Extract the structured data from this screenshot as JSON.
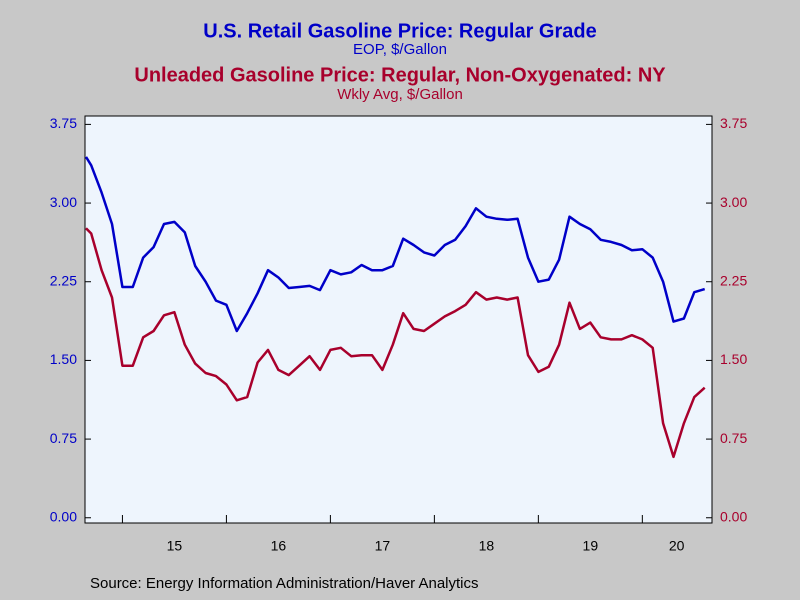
{
  "chart_data": {
    "type": "line",
    "source": "Source:  Energy Information Administration/Haver Analytics",
    "x": [
      14.65,
      14.7,
      14.8,
      14.9,
      15.0,
      15.1,
      15.2,
      15.3,
      15.4,
      15.5,
      15.6,
      15.7,
      15.8,
      15.9,
      16.0,
      16.1,
      16.2,
      16.3,
      16.4,
      16.5,
      16.6,
      16.7,
      16.8,
      16.9,
      17.0,
      17.1,
      17.2,
      17.3,
      17.4,
      17.5,
      17.6,
      17.7,
      17.8,
      17.9,
      18.0,
      18.1,
      18.2,
      18.3,
      18.4,
      18.5,
      18.6,
      18.7,
      18.8,
      18.9,
      19.0,
      19.1,
      19.2,
      19.3,
      19.4,
      19.5,
      19.6,
      19.7,
      19.8,
      19.9,
      20.0,
      20.1,
      20.2,
      20.3,
      20.4,
      20.5,
      20.6
    ],
    "series": [
      {
        "name": "U.S. Retail Gasoline Price: Regular Grade",
        "unit": "EOP, $/Gallon",
        "color": "#0000c8",
        "axis": "y",
        "values": [
          3.44,
          3.36,
          3.1,
          2.8,
          2.2,
          2.2,
          2.48,
          2.58,
          2.8,
          2.82,
          2.72,
          2.4,
          2.25,
          2.07,
          2.03,
          1.78,
          1.95,
          2.14,
          2.36,
          2.29,
          2.19,
          2.2,
          2.21,
          2.17,
          2.36,
          2.32,
          2.34,
          2.41,
          2.36,
          2.36,
          2.4,
          2.66,
          2.6,
          2.53,
          2.5,
          2.6,
          2.65,
          2.78,
          2.95,
          2.87,
          2.85,
          2.84,
          2.85,
          2.48,
          2.25,
          2.27,
          2.46,
          2.87,
          2.8,
          2.75,
          2.65,
          2.63,
          2.6,
          2.55,
          2.56,
          2.48,
          2.25,
          1.87,
          1.9,
          2.15,
          2.18
        ]
      },
      {
        "name": "Unleaded Gasoline Price: Regular, Non-Oxygenated: NY",
        "unit": "Wkly Avg, $/Gallon",
        "color": "#a8002c",
        "axis": "y2",
        "values": [
          2.76,
          2.71,
          2.36,
          2.1,
          1.45,
          1.45,
          1.72,
          1.78,
          1.93,
          1.96,
          1.65,
          1.47,
          1.38,
          1.35,
          1.27,
          1.12,
          1.15,
          1.48,
          1.6,
          1.41,
          1.36,
          1.45,
          1.54,
          1.41,
          1.6,
          1.62,
          1.54,
          1.55,
          1.55,
          1.41,
          1.65,
          1.95,
          1.8,
          1.78,
          1.85,
          1.92,
          1.97,
          2.03,
          2.15,
          2.08,
          2.1,
          2.08,
          2.1,
          1.55,
          1.39,
          1.44,
          1.65,
          2.05,
          1.8,
          1.86,
          1.72,
          1.7,
          1.7,
          1.74,
          1.7,
          1.62,
          0.9,
          0.58,
          0.9,
          1.15,
          1.24
        ]
      }
    ],
    "xlim": [
      14.64,
      20.67
    ],
    "xticks": [
      {
        "value": 15.5,
        "label": "15"
      },
      {
        "value": 16.5,
        "label": "16"
      },
      {
        "value": 17.5,
        "label": "17"
      },
      {
        "value": 18.5,
        "label": "18"
      },
      {
        "value": 19.5,
        "label": "19"
      },
      {
        "value": 20.33,
        "label": "20"
      }
    ],
    "xminor": [
      15,
      16,
      17,
      18,
      19,
      20
    ],
    "ylim": [
      -0.05,
      3.83
    ],
    "yticks": [
      {
        "value": 0,
        "label": "0.00"
      },
      {
        "value": 0.75,
        "label": "0.75"
      },
      {
        "value": 1.5,
        "label": "1.50"
      },
      {
        "value": 2.25,
        "label": "2.25"
      },
      {
        "value": 3,
        "label": "3.00"
      },
      {
        "value": 3.75,
        "label": "3.75"
      }
    ],
    "y2lim": [
      -0.05,
      3.83
    ],
    "y2ticks": [
      {
        "value": 0,
        "label": "0.00"
      },
      {
        "value": 0.75,
        "label": "0.75"
      },
      {
        "value": 1.5,
        "label": "1.50"
      },
      {
        "value": 2.25,
        "label": "2.25"
      },
      {
        "value": 3,
        "label": "3.00"
      },
      {
        "value": 3.75,
        "label": "3.75"
      }
    ]
  }
}
